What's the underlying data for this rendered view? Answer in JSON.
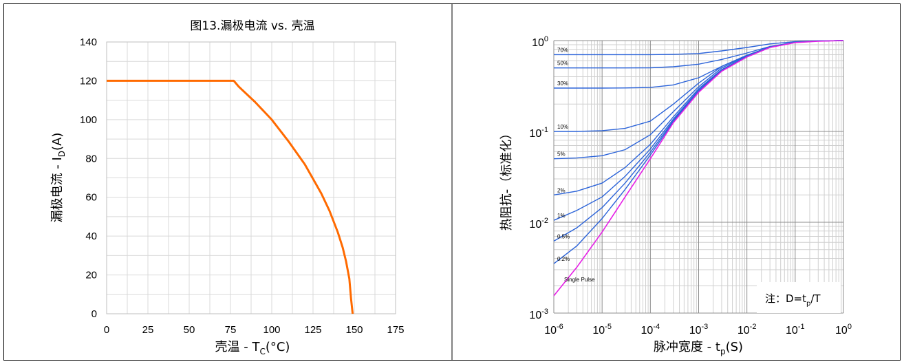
{
  "chart_data": [
    {
      "type": "line",
      "title": "图13.漏极电流 vs. 壳温",
      "xlabel": {
        "main": "壳温  - T",
        "sub": "C",
        "tail": "(°C)"
      },
      "ylabel": {
        "main": "漏极电流 - I",
        "sub": "D",
        "tail": "(A)"
      },
      "xlim": [
        0,
        175
      ],
      "ylim": [
        0,
        140
      ],
      "xticks": [
        "0",
        "25",
        "50",
        "75",
        "100",
        "125",
        "150",
        "175"
      ],
      "yticks": [
        "0",
        "20",
        "40",
        "60",
        "80",
        "100",
        "120",
        "140"
      ],
      "grid": true,
      "series_color": "#ff6a00",
      "series": [
        {
          "x": [
            0,
            77,
            80,
            90,
            100,
            110,
            120,
            130,
            135,
            140,
            143,
            145,
            147,
            148,
            149
          ],
          "y": [
            120,
            120,
            117,
            109,
            100,
            89,
            77,
            62,
            53,
            42,
            34,
            27,
            18,
            8,
            0
          ]
        }
      ]
    },
    {
      "type": "line",
      "title": "",
      "xlabel": {
        "main": "脉冲宽度 - t",
        "sub": "p",
        "tail": "(S)"
      },
      "ylabel": {
        "main": "热阻抗-（标准化）"
      },
      "xscale": "log",
      "yscale": "log",
      "xlim": [
        1e-06,
        1
      ],
      "ylim": [
        0.001,
        1
      ],
      "xticks": [
        {
          "base": "10",
          "exp": "-6"
        },
        {
          "base": "10",
          "exp": "-5"
        },
        {
          "base": "10",
          "exp": "-4"
        },
        {
          "base": "10",
          "exp": "-3"
        },
        {
          "base": "10",
          "exp": "-2"
        },
        {
          "base": "10",
          "exp": "-1"
        },
        {
          "base": "10",
          "exp": "0"
        }
      ],
      "yticks": [
        {
          "base": "10",
          "exp": "-3"
        },
        {
          "base": "10",
          "exp": "-2"
        },
        {
          "base": "10",
          "exp": "-1"
        },
        {
          "base": "10",
          "exp": "0"
        }
      ],
      "grid": true,
      "annotation": {
        "text": "注：D=t",
        "sub": "p",
        "tail": "/T"
      },
      "duty_color": "#2b63d9",
      "single_color": "#e61ee6",
      "x_points": [
        1e-06,
        3e-06,
        1e-05,
        3e-05,
        0.0001,
        0.0003,
        0.001,
        0.003,
        0.01,
        0.03,
        0.1,
        0.3,
        1
      ],
      "single_pulse": {
        "name": "Single Pulse",
        "values": [
          0.00155,
          0.0032,
          0.0078,
          0.019,
          0.05,
          0.125,
          0.27,
          0.46,
          0.66,
          0.84,
          0.95,
          0.985,
          1.0
        ]
      },
      "series": [
        {
          "name": "70%",
          "values": [
            0.7,
            0.7,
            0.7,
            0.7,
            0.7,
            0.705,
            0.72,
            0.77,
            0.84,
            0.92,
            0.975,
            0.995,
            1.0
          ]
        },
        {
          "name": "50%",
          "values": [
            0.5,
            0.5,
            0.5,
            0.5,
            0.502,
            0.515,
            0.55,
            0.62,
            0.73,
            0.86,
            0.96,
            0.99,
            1.0
          ]
        },
        {
          "name": "30%",
          "values": [
            0.3,
            0.3,
            0.3,
            0.301,
            0.305,
            0.325,
            0.39,
            0.52,
            0.69,
            0.85,
            0.955,
            0.99,
            1.0
          ]
        },
        {
          "name": "10%",
          "values": [
            0.1,
            0.1,
            0.102,
            0.108,
            0.13,
            0.2,
            0.34,
            0.52,
            0.69,
            0.85,
            0.955,
            0.99,
            1.0
          ]
        },
        {
          "name": "5%",
          "values": [
            0.05,
            0.051,
            0.054,
            0.063,
            0.092,
            0.165,
            0.31,
            0.5,
            0.68,
            0.85,
            0.955,
            0.99,
            1.0
          ]
        },
        {
          "name": "2%",
          "values": [
            0.02,
            0.022,
            0.027,
            0.04,
            0.072,
            0.145,
            0.295,
            0.48,
            0.67,
            0.845,
            0.955,
            0.99,
            1.0
          ]
        },
        {
          "name": "1%",
          "values": [
            0.0105,
            0.0135,
            0.019,
            0.032,
            0.064,
            0.137,
            0.285,
            0.475,
            0.665,
            0.845,
            0.955,
            0.99,
            1.0
          ]
        },
        {
          "name": "0.5%",
          "values": [
            0.0062,
            0.0087,
            0.0145,
            0.027,
            0.059,
            0.132,
            0.28,
            0.47,
            0.665,
            0.845,
            0.955,
            0.99,
            1.0
          ]
        },
        {
          "name": "0.2%",
          "values": [
            0.0035,
            0.0055,
            0.011,
            0.023,
            0.055,
            0.128,
            0.275,
            0.465,
            0.66,
            0.84,
            0.955,
            0.99,
            1.0
          ]
        }
      ]
    }
  ]
}
